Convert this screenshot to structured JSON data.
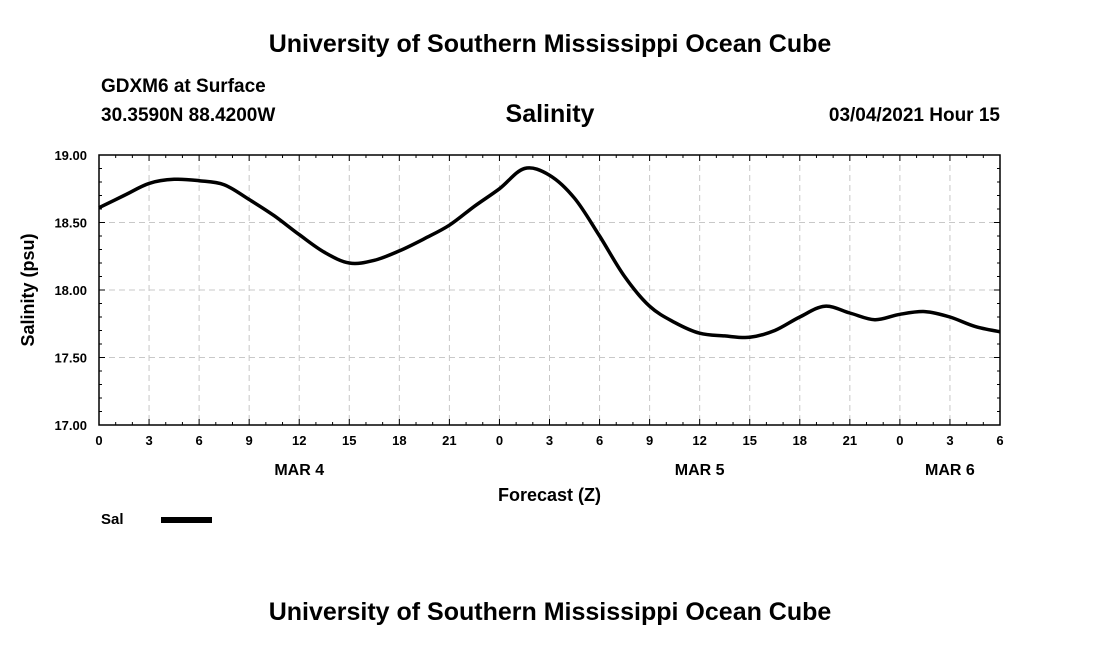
{
  "header": {
    "top_title": "University of Southern Mississippi Ocean Cube",
    "station": "GDXM6 at Surface",
    "coords": "30.3590N 88.4200W",
    "chart_title": "Salinity",
    "datetime": "03/04/2021 Hour 15"
  },
  "footer": {
    "bottom_title": "University of Southern Mississippi Ocean Cube"
  },
  "colors": {
    "line": "#000000",
    "grid": "#c8c8c8"
  },
  "chart_data": {
    "type": "line",
    "title": "Salinity",
    "xlabel": "Forecast (Z)",
    "ylabel": "Salinity (psu)",
    "ylim": [
      17.0,
      19.0
    ],
    "xlim": [
      0,
      54
    ],
    "x_unit": "hours since MAR 4 00Z",
    "y_ticks": [
      "17.00",
      "17.50",
      "18.00",
      "18.50",
      "19.00"
    ],
    "x_tick_labels": [
      "0",
      "3",
      "6",
      "9",
      "12",
      "15",
      "18",
      "21",
      "0",
      "3",
      "6",
      "9",
      "12",
      "15",
      "18",
      "21",
      "0",
      "3",
      "6"
    ],
    "date_labels": [
      {
        "label": "MAR 4",
        "hour": 12
      },
      {
        "label": "MAR 5",
        "hour": 36
      },
      {
        "label": "MAR 6",
        "hour": 51
      }
    ],
    "legend": [
      {
        "name": "Sal"
      }
    ],
    "series": [
      {
        "name": "Sal",
        "x": [
          0,
          1.5,
          3,
          4.5,
          6,
          7.5,
          9,
          10.5,
          12,
          13.5,
          15,
          16.5,
          18,
          19.5,
          21,
          22.5,
          24,
          25.5,
          27,
          28.5,
          30,
          31.5,
          33,
          34.5,
          36,
          37.5,
          39,
          40.5,
          42,
          43.5,
          45,
          46.5,
          48,
          49.5,
          51,
          52.5,
          54
        ],
        "values": [
          18.61,
          18.7,
          18.79,
          18.82,
          18.81,
          18.78,
          18.67,
          18.55,
          18.41,
          18.28,
          18.2,
          18.22,
          18.29,
          18.38,
          18.48,
          18.62,
          18.75,
          18.9,
          18.85,
          18.68,
          18.4,
          18.1,
          17.88,
          17.76,
          17.68,
          17.66,
          17.65,
          17.7,
          17.8,
          17.88,
          17.83,
          17.78,
          17.82,
          17.84,
          17.8,
          17.73,
          17.69
        ]
      }
    ]
  }
}
